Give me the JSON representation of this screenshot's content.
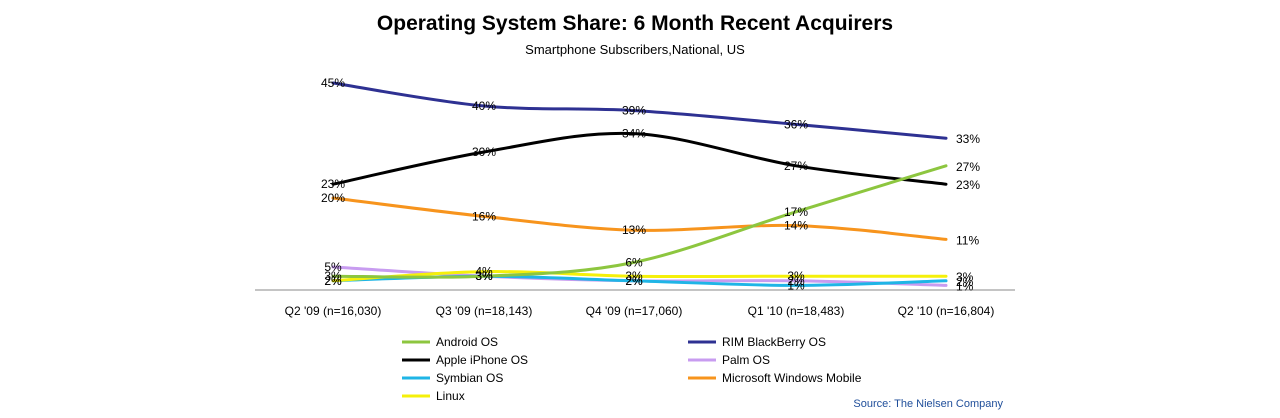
{
  "chart_data": {
    "type": "line",
    "title": "Operating System Share: 6 Month Recent Acquirers",
    "subtitle": "Smartphone Subscribers,National, US",
    "categories": [
      "Q2 '09 (n=16,030)",
      "Q3 '09 (n=18,143)",
      "Q4 '09 (n=17,060)",
      "Q1 '10 (n=18,483)",
      "Q2 '10 (n=16,804)"
    ],
    "ylim": [
      0,
      50
    ],
    "series": [
      {
        "name": "Android OS",
        "color": "#8dc63f",
        "values": [
          3,
          3,
          6,
          17,
          27
        ],
        "labels": [
          "3%",
          "3%",
          "6%",
          "17%",
          "27%"
        ]
      },
      {
        "name": "RIM BlackBerry OS",
        "color": "#2e3192",
        "values": [
          45,
          40,
          39,
          36,
          33
        ],
        "labels": [
          "45%",
          "40%",
          "39%",
          "36%",
          "33%"
        ]
      },
      {
        "name": "Apple iPhone OS",
        "color": "#000000",
        "values": [
          23,
          30,
          34,
          27,
          23
        ],
        "labels": [
          "23%",
          "30%",
          "34%",
          "27%",
          "23%"
        ]
      },
      {
        "name": "Palm OS",
        "color": "#c89cf0",
        "values": [
          5,
          3,
          2,
          2,
          1
        ],
        "labels": [
          "5%",
          "3%",
          "2%",
          "2%",
          "1%"
        ]
      },
      {
        "name": "Symbian OS",
        "color": "#1fb5e6",
        "values": [
          2,
          3,
          2,
          1,
          2
        ],
        "labels": [
          "2%",
          "3%",
          "2%",
          "1%",
          "2%"
        ]
      },
      {
        "name": "Microsoft Windows Mobile",
        "color": "#f7941d",
        "values": [
          20,
          16,
          13,
          14,
          11
        ],
        "labels": [
          "20%",
          "16%",
          "13%",
          "14%",
          "11%"
        ]
      },
      {
        "name": "Linux",
        "color": "#f5f00a",
        "values": [
          2,
          4,
          3,
          3,
          3
        ],
        "labels": [
          "2%",
          "4%",
          "3%",
          "3%",
          "3%"
        ]
      }
    ],
    "legend_order": [
      "Android OS",
      "RIM BlackBerry OS",
      "Apple iPhone OS",
      "Palm OS",
      "Symbian OS",
      "Microsoft Windows Mobile",
      "Linux"
    ],
    "source": "Source: The Nielsen Company"
  }
}
